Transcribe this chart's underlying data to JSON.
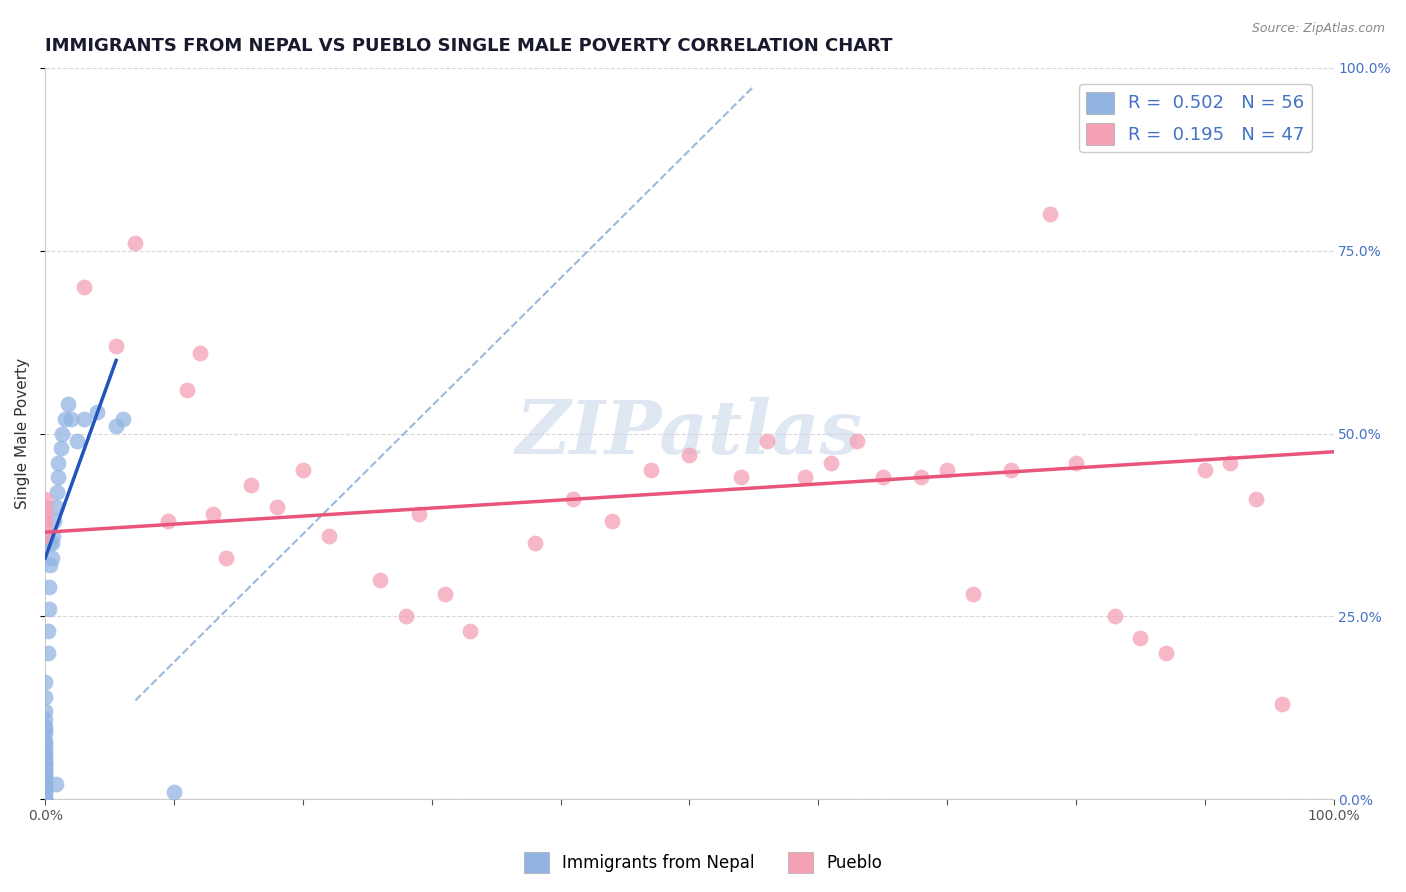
{
  "title": "IMMIGRANTS FROM NEPAL VS PUEBLO SINGLE MALE POVERTY CORRELATION CHART",
  "source": "Source: ZipAtlas.com",
  "ylabel": "Single Male Poverty",
  "watermark": "ZIPatlas",
  "legend_label1": "Immigrants from Nepal",
  "legend_label2": "Pueblo",
  "r1": 0.502,
  "n1": 56,
  "r2": 0.195,
  "n2": 47,
  "color1": "#92b4e3",
  "color2": "#f4a0b5",
  "trendline1_color": "#2255bb",
  "trendline2_color": "#e8547a",
  "refline_color": "#7aa0d4",
  "background_color": "#ffffff",
  "grid_color": "#d8d8d8",
  "xlim": [
    0.0,
    1.0
  ],
  "ylim": [
    0.0,
    1.0
  ],
  "nepal_x": [
    0.0,
    0.0,
    0.0,
    0.0,
    0.0,
    0.0,
    0.0,
    0.0,
    0.0,
    0.0,
    0.0,
    0.0,
    0.0,
    0.0,
    0.0,
    0.0,
    0.0,
    0.0,
    0.0,
    0.0,
    0.0,
    0.0,
    0.0,
    0.0,
    0.0,
    0.0,
    0.0,
    0.0,
    0.0,
    0.0,
    0.002,
    0.002,
    0.003,
    0.003,
    0.004,
    0.004,
    0.005,
    0.005,
    0.006,
    0.007,
    0.008,
    0.009,
    0.01,
    0.01,
    0.012,
    0.013,
    0.015,
    0.018,
    0.02,
    0.025,
    0.03,
    0.04,
    0.055,
    0.06,
    0.008,
    0.1
  ],
  "nepal_y": [
    0.0,
    0.0,
    0.0,
    0.01,
    0.01,
    0.015,
    0.02,
    0.025,
    0.025,
    0.03,
    0.03,
    0.035,
    0.04,
    0.04,
    0.045,
    0.05,
    0.05,
    0.055,
    0.06,
    0.065,
    0.07,
    0.075,
    0.08,
    0.09,
    0.095,
    0.1,
    0.11,
    0.12,
    0.14,
    0.16,
    0.2,
    0.23,
    0.26,
    0.29,
    0.32,
    0.35,
    0.33,
    0.35,
    0.36,
    0.38,
    0.4,
    0.42,
    0.44,
    0.46,
    0.48,
    0.5,
    0.52,
    0.54,
    0.52,
    0.49,
    0.52,
    0.53,
    0.51,
    0.52,
    0.02,
    0.01
  ],
  "pueblo_x": [
    0.0,
    0.0,
    0.0,
    0.0,
    0.0,
    0.0,
    0.03,
    0.055,
    0.07,
    0.095,
    0.11,
    0.12,
    0.13,
    0.14,
    0.16,
    0.18,
    0.2,
    0.22,
    0.26,
    0.28,
    0.29,
    0.31,
    0.33,
    0.38,
    0.41,
    0.44,
    0.47,
    0.5,
    0.54,
    0.56,
    0.59,
    0.61,
    0.63,
    0.65,
    0.68,
    0.7,
    0.72,
    0.75,
    0.78,
    0.8,
    0.83,
    0.85,
    0.87,
    0.9,
    0.92,
    0.94,
    0.96
  ],
  "pueblo_y": [
    0.36,
    0.37,
    0.38,
    0.39,
    0.4,
    0.41,
    0.7,
    0.62,
    0.76,
    0.38,
    0.56,
    0.61,
    0.39,
    0.33,
    0.43,
    0.4,
    0.45,
    0.36,
    0.3,
    0.25,
    0.39,
    0.28,
    0.23,
    0.35,
    0.41,
    0.38,
    0.45,
    0.47,
    0.44,
    0.49,
    0.44,
    0.46,
    0.49,
    0.44,
    0.44,
    0.45,
    0.28,
    0.45,
    0.8,
    0.46,
    0.25,
    0.22,
    0.2,
    0.45,
    0.46,
    0.41,
    0.13
  ],
  "trendline1_x0": 0.0,
  "trendline1_y0": 0.33,
  "trendline1_x1": 0.055,
  "trendline1_y1": 0.6,
  "trendline2_x0": 0.0,
  "trendline2_y0": 0.365,
  "trendline2_x1": 1.0,
  "trendline2_y1": 0.475,
  "refline_x0": 0.07,
  "refline_y0": 0.135,
  "refline_x1": 0.55,
  "refline_y1": 0.975,
  "yticks": [
    0.0,
    0.25,
    0.5,
    0.75,
    1.0
  ],
  "ytick_labels_right": [
    "0.0%",
    "25.0%",
    "50.0%",
    "75.0%",
    "100.0%"
  ],
  "title_fontsize": 13,
  "axis_label_fontsize": 11,
  "tick_fontsize": 10,
  "dot_size": 130
}
